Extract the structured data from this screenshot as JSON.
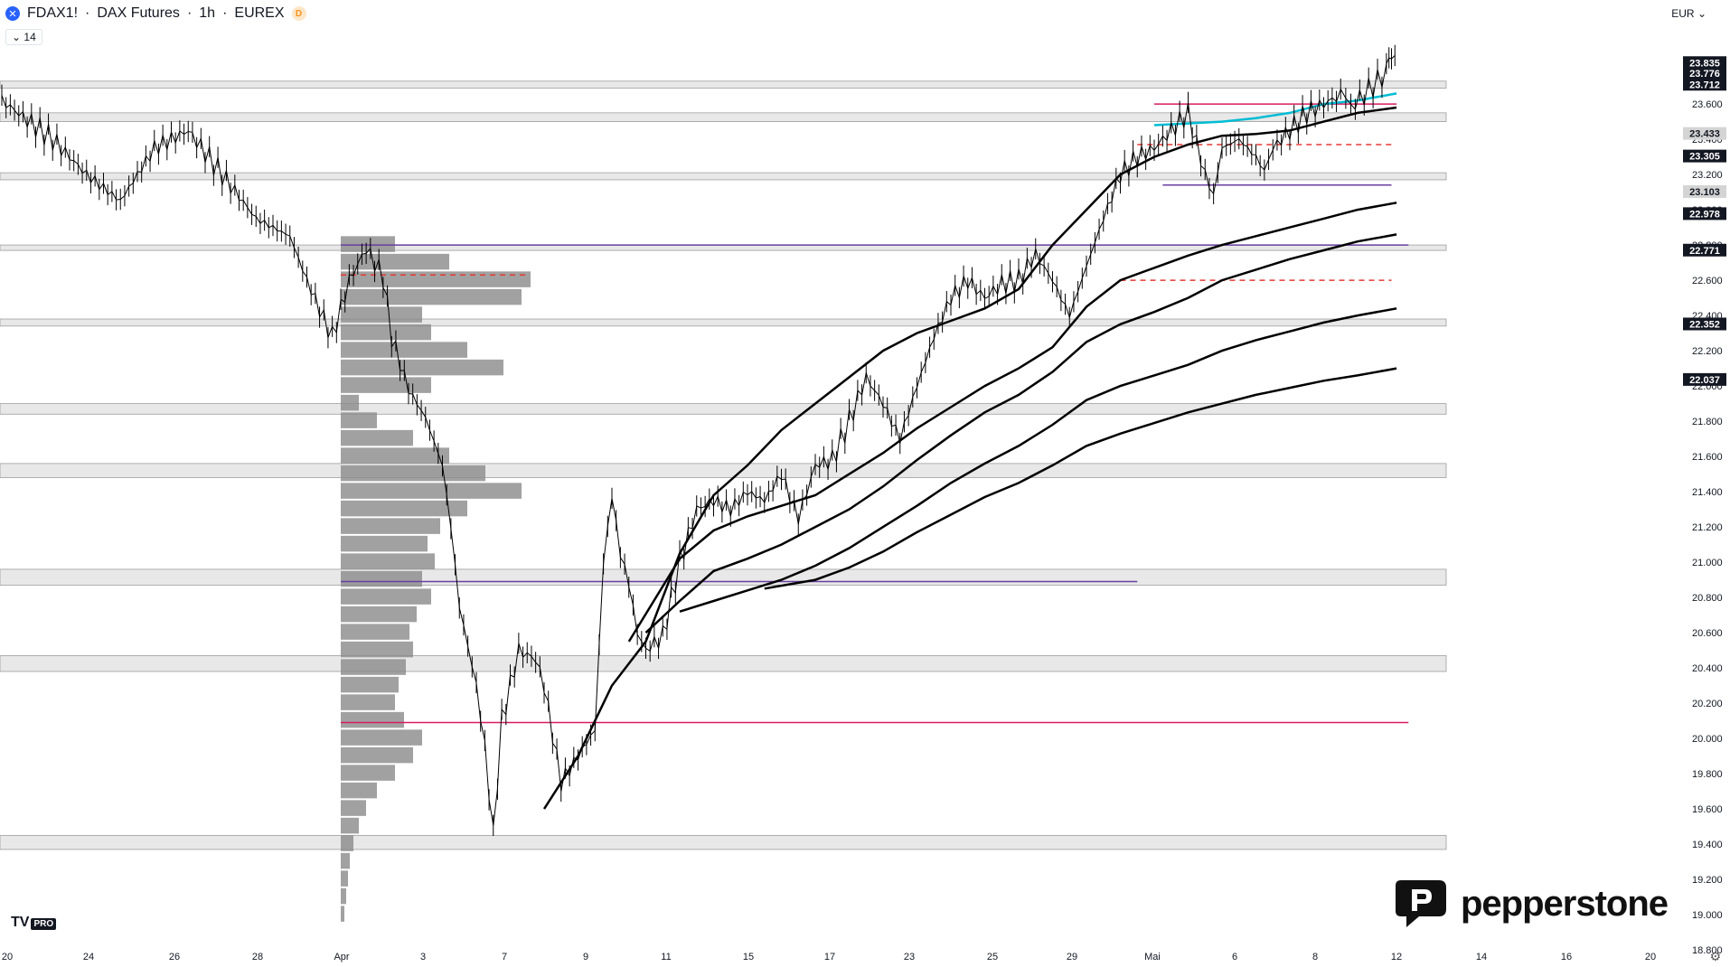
{
  "header": {
    "symbol": "FDAX1!",
    "description": "DAX Futures",
    "interval": "1h",
    "exchange": "EUREX",
    "badge": "D",
    "indicator_value": "14"
  },
  "currency": "EUR",
  "branding": {
    "platform": "TV",
    "platform_tier": "PRO",
    "broker": "pepperstone"
  },
  "colors": {
    "candles": "#000000",
    "ema_lines": "#000000",
    "ema_fast": "#00bcd4",
    "zones": "#e8e8e8",
    "poc_red": "#e53935",
    "blue_dots": "#1e40ff",
    "purple": "#6a3ea1",
    "magenta": "#d81b60"
  },
  "chart_data": {
    "type": "line",
    "title": "",
    "x_tick_labels": [
      "20",
      "24",
      "26",
      "28",
      "Apr",
      "3",
      "7",
      "9",
      "11",
      "15",
      "17",
      "23",
      "25",
      "29",
      "Mai",
      "6",
      "8",
      "12",
      "14",
      "16",
      "20"
    ],
    "y_tick_labels": [
      "23.600",
      "23.400",
      "23.200",
      "23.000",
      "22.800",
      "22.600",
      "22.400",
      "22.200",
      "22.000",
      "21.800",
      "21.600",
      "21.400",
      "21.200",
      "21.000",
      "20.800",
      "20.600",
      "20.400",
      "20.200",
      "20.000",
      "19.800",
      "19.600",
      "19.400",
      "19.200",
      "19.000",
      "18.800"
    ],
    "ylim": [
      18.78,
      24.2
    ],
    "price_badges": [
      {
        "label": "23.835",
        "value": 23.835,
        "style": "dark"
      },
      {
        "label": "23.776",
        "value": 23.776,
        "style": "dark"
      },
      {
        "label": "23.712",
        "value": 23.712,
        "style": "dark"
      },
      {
        "label": "23.433",
        "value": 23.433,
        "style": "light"
      },
      {
        "label": "23.305",
        "value": 23.305,
        "style": "dark"
      },
      {
        "label": "23.103",
        "value": 23.103,
        "style": "light"
      },
      {
        "label": "22.978",
        "value": 22.978,
        "style": "dark"
      },
      {
        "label": "22.771",
        "value": 22.771,
        "style": "dark"
      },
      {
        "label": "22.352",
        "value": 22.352,
        "style": "dark"
      },
      {
        "label": "22.037",
        "value": 22.037,
        "style": "dark"
      }
    ],
    "zones": [
      {
        "from": 23.69,
        "to": 23.73
      },
      {
        "from": 23.5,
        "to": 23.55
      },
      {
        "from": 23.17,
        "to": 23.21
      },
      {
        "from": 22.77,
        "to": 22.8
      },
      {
        "from": 22.34,
        "to": 22.38
      },
      {
        "from": 21.84,
        "to": 21.9
      },
      {
        "from": 21.48,
        "to": 21.56
      },
      {
        "from": 20.87,
        "to": 20.96
      },
      {
        "from": 20.38,
        "to": 20.47
      },
      {
        "from": 19.37,
        "to": 19.45
      }
    ],
    "price_path": [
      [
        0,
        23.62
      ],
      [
        3,
        23.4
      ],
      [
        5,
        23.2
      ],
      [
        7,
        23.05
      ],
      [
        9,
        23.35
      ],
      [
        11,
        23.45
      ],
      [
        13,
        23.2
      ],
      [
        15,
        22.95
      ],
      [
        17,
        22.85
      ],
      [
        18,
        22.6
      ],
      [
        19,
        22.38
      ],
      [
        19.5,
        22.28
      ],
      [
        20.5,
        22.6
      ],
      [
        21.5,
        22.78
      ],
      [
        22.5,
        22.62
      ],
      [
        23,
        22.28
      ],
      [
        24,
        21.98
      ],
      [
        25,
        21.82
      ],
      [
        26,
        21.55
      ],
      [
        26.5,
        21.2
      ],
      [
        27,
        20.75
      ],
      [
        28,
        20.3
      ],
      [
        28.5,
        19.95
      ],
      [
        29,
        19.45
      ],
      [
        29.5,
        20.1
      ],
      [
        30.5,
        20.5
      ],
      [
        31.5,
        20.45
      ],
      [
        32,
        20.3
      ],
      [
        33,
        19.75
      ],
      [
        34,
        19.9
      ],
      [
        35,
        20.05
      ],
      [
        35.5,
        21.0
      ],
      [
        36,
        21.38
      ],
      [
        36.5,
        21.05
      ],
      [
        37,
        20.88
      ],
      [
        37.5,
        20.6
      ],
      [
        38,
        20.5
      ],
      [
        39,
        20.58
      ],
      [
        40,
        21.0
      ],
      [
        41,
        21.3
      ],
      [
        42,
        21.35
      ],
      [
        43,
        21.3
      ],
      [
        44,
        21.4
      ],
      [
        45,
        21.35
      ],
      [
        46,
        21.5
      ],
      [
        47,
        21.25
      ],
      [
        48,
        21.55
      ],
      [
        49,
        21.58
      ],
      [
        50,
        21.8
      ],
      [
        51,
        22.05
      ],
      [
        52,
        21.9
      ],
      [
        53,
        21.7
      ],
      [
        54,
        22.0
      ],
      [
        55,
        22.28
      ],
      [
        56,
        22.5
      ],
      [
        57,
        22.6
      ],
      [
        58,
        22.5
      ],
      [
        59,
        22.58
      ],
      [
        60,
        22.6
      ],
      [
        61,
        22.75
      ],
      [
        62,
        22.6
      ],
      [
        63,
        22.4
      ],
      [
        64,
        22.68
      ],
      [
        65,
        22.95
      ],
      [
        66,
        23.2
      ],
      [
        67,
        23.3
      ],
      [
        68,
        23.35
      ],
      [
        69,
        23.45
      ],
      [
        70,
        23.55
      ],
      [
        71,
        23.2
      ],
      [
        71.5,
        23.08
      ],
      [
        72,
        23.35
      ],
      [
        73,
        23.4
      ],
      [
        74,
        23.3
      ],
      [
        74.5,
        23.22
      ],
      [
        75,
        23.35
      ],
      [
        76,
        23.45
      ],
      [
        77,
        23.55
      ],
      [
        78,
        23.6
      ],
      [
        79,
        23.65
      ],
      [
        79.6,
        23.58
      ],
      [
        81.7,
        23.78
      ],
      [
        82,
        23.85
      ],
      [
        82.4,
        23.81
      ]
    ],
    "ema_lines": [
      {
        "name": "",
        "values": [
          [
            32,
            19.6
          ],
          [
            34,
            19.9
          ],
          [
            36,
            20.3
          ],
          [
            38,
            20.55
          ],
          [
            40,
            21.05
          ],
          [
            42,
            21.38
          ],
          [
            44,
            21.55
          ],
          [
            46,
            21.75
          ],
          [
            48,
            21.9
          ],
          [
            50,
            22.05
          ],
          [
            52,
            22.2
          ],
          [
            54,
            22.3
          ],
          [
            56,
            22.37
          ],
          [
            58,
            22.44
          ],
          [
            60,
            22.55
          ],
          [
            62,
            22.8
          ],
          [
            64,
            23.0
          ],
          [
            66,
            23.2
          ],
          [
            68,
            23.3
          ],
          [
            70,
            23.37
          ],
          [
            72,
            23.42
          ],
          [
            74,
            23.43
          ],
          [
            76,
            23.45
          ],
          [
            78,
            23.5
          ],
          [
            80,
            23.55
          ],
          [
            82.3,
            23.58
          ]
        ]
      },
      {
        "name": "",
        "values": [
          [
            68,
            23.48
          ],
          [
            72,
            23.5
          ],
          [
            74,
            23.52
          ],
          [
            76,
            23.55
          ],
          [
            78,
            23.6
          ],
          [
            80,
            23.62
          ],
          [
            82.3,
            23.66
          ]
        ]
      },
      {
        "name": "",
        "values": [
          [
            37,
            20.55
          ],
          [
            40,
            21.02
          ],
          [
            42,
            21.18
          ],
          [
            44,
            21.26
          ],
          [
            46,
            21.32
          ],
          [
            48,
            21.38
          ],
          [
            50,
            21.5
          ],
          [
            52,
            21.62
          ],
          [
            54,
            21.76
          ],
          [
            56,
            21.88
          ],
          [
            58,
            22.0
          ],
          [
            60,
            22.1
          ],
          [
            62,
            22.22
          ],
          [
            64,
            22.45
          ],
          [
            66,
            22.6
          ],
          [
            68,
            22.67
          ],
          [
            70,
            22.74
          ],
          [
            72,
            22.8
          ],
          [
            74,
            22.85
          ],
          [
            76,
            22.9
          ],
          [
            78,
            22.95
          ],
          [
            80,
            23.0
          ],
          [
            82.3,
            23.04
          ]
        ]
      },
      {
        "name": "",
        "values": [
          [
            38,
            20.6
          ],
          [
            40,
            20.78
          ],
          [
            42,
            20.95
          ],
          [
            44,
            21.02
          ],
          [
            46,
            21.1
          ],
          [
            48,
            21.2
          ],
          [
            50,
            21.3
          ],
          [
            52,
            21.43
          ],
          [
            54,
            21.58
          ],
          [
            56,
            21.72
          ],
          [
            58,
            21.85
          ],
          [
            60,
            21.95
          ],
          [
            62,
            22.08
          ],
          [
            64,
            22.25
          ],
          [
            66,
            22.35
          ],
          [
            68,
            22.42
          ],
          [
            70,
            22.5
          ],
          [
            72,
            22.6
          ],
          [
            74,
            22.66
          ],
          [
            76,
            22.72
          ],
          [
            78,
            22.77
          ],
          [
            80,
            22.82
          ],
          [
            82.3,
            22.86
          ]
        ]
      },
      {
        "name": "",
        "values": [
          [
            40,
            20.72
          ],
          [
            42,
            20.78
          ],
          [
            44,
            20.84
          ],
          [
            46,
            20.9
          ],
          [
            48,
            20.98
          ],
          [
            50,
            21.08
          ],
          [
            52,
            21.2
          ],
          [
            54,
            21.32
          ],
          [
            56,
            21.45
          ],
          [
            58,
            21.56
          ],
          [
            60,
            21.66
          ],
          [
            62,
            21.78
          ],
          [
            64,
            21.92
          ],
          [
            66,
            22.0
          ],
          [
            68,
            22.06
          ],
          [
            70,
            22.12
          ],
          [
            72,
            22.2
          ],
          [
            74,
            22.26
          ],
          [
            76,
            22.31
          ],
          [
            78,
            22.36
          ],
          [
            80,
            22.4
          ],
          [
            82.3,
            22.44
          ]
        ]
      },
      {
        "name": "",
        "values": [
          [
            45,
            20.85
          ],
          [
            48,
            20.9
          ],
          [
            50,
            20.97
          ],
          [
            52,
            21.06
          ],
          [
            54,
            21.17
          ],
          [
            56,
            21.27
          ],
          [
            58,
            21.37
          ],
          [
            60,
            21.45
          ],
          [
            62,
            21.55
          ],
          [
            64,
            21.66
          ],
          [
            66,
            21.73
          ],
          [
            68,
            21.79
          ],
          [
            70,
            21.85
          ],
          [
            72,
            21.9
          ],
          [
            74,
            21.95
          ],
          [
            76,
            21.99
          ],
          [
            78,
            22.03
          ],
          [
            80,
            22.06
          ],
          [
            82.3,
            22.1
          ]
        ]
      }
    ],
    "levels": [
      {
        "value": 22.8,
        "color": "#6a3ea1",
        "from": 20,
        "to": 83
      },
      {
        "value": 23.14,
        "color": "#6a3ea1",
        "from": 68.5,
        "to": 82
      },
      {
        "value": 20.89,
        "color": "#6a3ea1",
        "from": 20,
        "to": 67
      },
      {
        "value": 20.09,
        "color": "#d81b60",
        "from": 20,
        "to": 83
      },
      {
        "value": 23.6,
        "color": "#d81b60",
        "from": 68,
        "to": 82.3
      },
      {
        "value": 22.63,
        "color": "#e53935",
        "from": 20,
        "to": 31,
        "dashed": true
      },
      {
        "value": 22.6,
        "color": "#e53935",
        "from": 66,
        "to": 82,
        "dashed": true
      },
      {
        "value": 23.37,
        "color": "#e53935",
        "from": 67,
        "to": 82,
        "dashed": true
      }
    ],
    "volume_profile": {
      "anchor_x": 20,
      "bins": [
        [
          19.0,
          0.02
        ],
        [
          19.1,
          0.03
        ],
        [
          19.2,
          0.04
        ],
        [
          19.3,
          0.05
        ],
        [
          19.4,
          0.07
        ],
        [
          19.5,
          0.1
        ],
        [
          19.6,
          0.14
        ],
        [
          19.7,
          0.2
        ],
        [
          19.8,
          0.3
        ],
        [
          19.9,
          0.4
        ],
        [
          20.0,
          0.45
        ],
        [
          20.1,
          0.35
        ],
        [
          20.2,
          0.3
        ],
        [
          20.3,
          0.32
        ],
        [
          20.4,
          0.36
        ],
        [
          20.5,
          0.4
        ],
        [
          20.6,
          0.38
        ],
        [
          20.7,
          0.42
        ],
        [
          20.8,
          0.5
        ],
        [
          20.9,
          0.45
        ],
        [
          21.0,
          0.52
        ],
        [
          21.1,
          0.48
        ],
        [
          21.2,
          0.55
        ],
        [
          21.3,
          0.7
        ],
        [
          21.4,
          1.0
        ],
        [
          21.5,
          0.8
        ],
        [
          21.6,
          0.6
        ],
        [
          21.7,
          0.4
        ],
        [
          21.8,
          0.2
        ],
        [
          21.9,
          0.1
        ],
        [
          22.0,
          0.5
        ],
        [
          22.1,
          0.9
        ],
        [
          22.2,
          0.7
        ],
        [
          22.3,
          0.5
        ],
        [
          22.4,
          0.45
        ],
        [
          22.5,
          1.0
        ],
        [
          22.6,
          1.05
        ],
        [
          22.7,
          0.6
        ],
        [
          22.8,
          0.3
        ]
      ]
    }
  }
}
